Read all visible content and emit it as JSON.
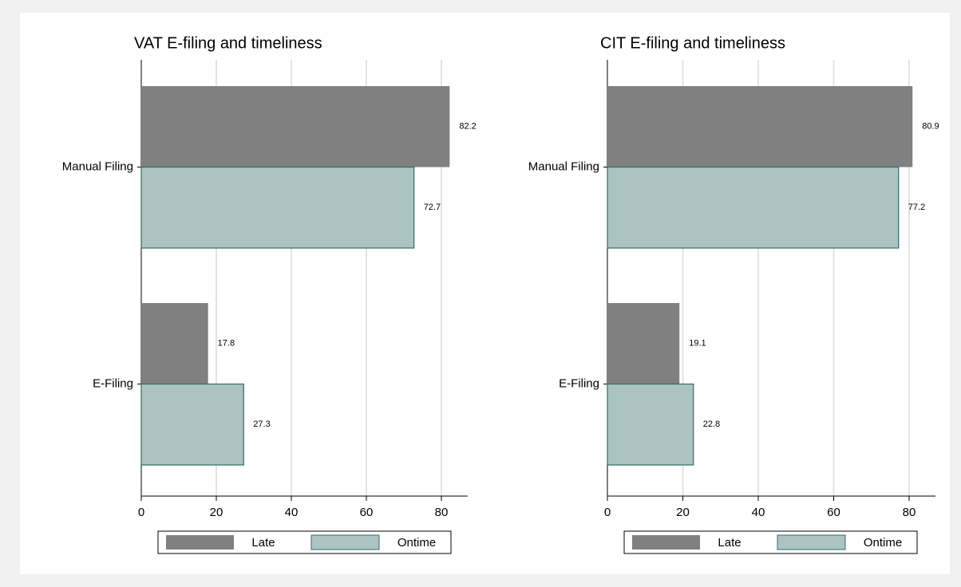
{
  "chart_data": [
    {
      "type": "bar",
      "orientation": "horizontal",
      "title": "VAT E-filing and timeliness",
      "categories": [
        "Manual Filing",
        "E-Filing"
      ],
      "series": [
        {
          "name": "Late",
          "color": "#808080",
          "values": [
            82.2,
            17.8
          ]
        },
        {
          "name": "Ontime",
          "color": "#abc4c1",
          "values": [
            72.7,
            27.3
          ]
        }
      ],
      "xlim": [
        0,
        87
      ],
      "xticks": [
        0,
        20,
        40,
        60,
        80
      ],
      "grid": true,
      "legend": "bottom"
    },
    {
      "type": "bar",
      "orientation": "horizontal",
      "title": "CIT E-filing and timeliness",
      "categories": [
        "Manual Filing",
        "E-Filing"
      ],
      "series": [
        {
          "name": "Late",
          "color": "#808080",
          "values": [
            80.9,
            19.1
          ]
        },
        {
          "name": "Ontime",
          "color": "#abc4c1",
          "values": [
            77.2,
            22.8
          ]
        }
      ],
      "xlim": [
        0,
        87
      ],
      "xticks": [
        0,
        20,
        40,
        60,
        80
      ],
      "grid": true,
      "legend": "bottom"
    }
  ]
}
